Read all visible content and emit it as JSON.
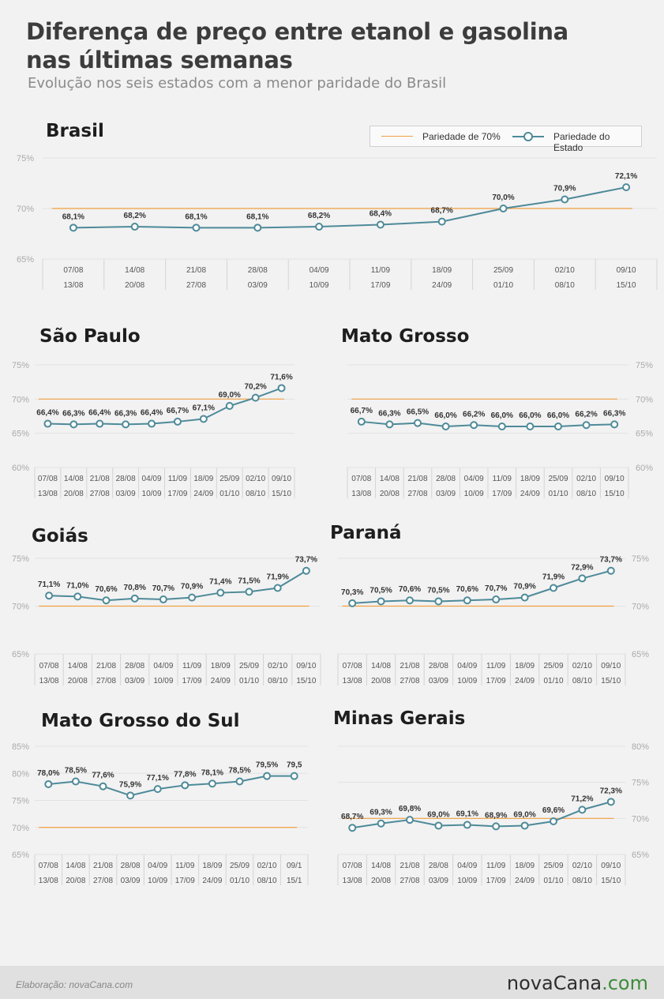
{
  "title": "Diferença de preço entre etanol e gasolina nas últimas semanas",
  "subtitle": "Evolução nos seis estados com a menor paridade do Brasil",
  "legend": {
    "reference": "Pariedade de 70%",
    "state": "Pariedade do Estado"
  },
  "footer": {
    "credit": "Elaboração: novaCana.com",
    "logo_main": "novaCana",
    "logo_suffix": ".com"
  },
  "colors": {
    "line": "#4e8a99",
    "reference": "#f0a040",
    "logo_accent": "#3c8c3c"
  },
  "chart_data": [
    {
      "type": "line",
      "title": "Brasil",
      "categories": [
        "07/08 13/08",
        "14/08 20/08",
        "21/08 27/08",
        "28/08 03/09",
        "04/09 10/09",
        "11/09 17/09",
        "18/09 24/09",
        "25/09 01/10",
        "02/10 08/10",
        "09/10 15/10"
      ],
      "ticks_top": [
        "07/08",
        "14/08",
        "21/08",
        "28/08",
        "04/09",
        "11/09",
        "18/09",
        "25/09",
        "02/10",
        "09/10"
      ],
      "ticks_bottom": [
        "13/08",
        "20/08",
        "27/08",
        "03/09",
        "10/09",
        "17/09",
        "24/09",
        "01/10",
        "08/10",
        "15/10"
      ],
      "values": [
        68.1,
        68.2,
        68.1,
        68.1,
        68.2,
        68.4,
        68.7,
        70.0,
        70.9,
        72.1
      ],
      "labels": [
        "68,1%",
        "68,2%",
        "68,1%",
        "68,1%",
        "68,2%",
        "68,4%",
        "68,7%",
        "70,0%",
        "70,9%",
        "72,1%"
      ],
      "reference": 70,
      "ylim": [
        65,
        75
      ],
      "yticks": [
        "65%",
        "70%",
        "75%"
      ],
      "yaxis_side": "left",
      "grid": true
    },
    {
      "type": "line",
      "title": "São Paulo",
      "categories": [
        "07/08 13/08",
        "14/08 20/08",
        "21/08 27/08",
        "28/08 03/09",
        "04/09 10/09",
        "11/09 17/09",
        "18/09 24/09",
        "25/09 01/10",
        "02/10 08/10",
        "09/10 15/10"
      ],
      "ticks_top": [
        "07/08",
        "14/08",
        "21/08",
        "28/08",
        "04/09",
        "11/09",
        "18/09",
        "25/09",
        "02/10",
        "09/10"
      ],
      "ticks_bottom": [
        "13/08",
        "20/08",
        "27/08",
        "03/09",
        "10/09",
        "17/09",
        "24/09",
        "01/10",
        "08/10",
        "15/10"
      ],
      "values": [
        66.4,
        66.3,
        66.4,
        66.3,
        66.4,
        66.7,
        67.1,
        69.0,
        70.2,
        71.6
      ],
      "labels": [
        "66,4%",
        "66,3%",
        "66,4%",
        "66,3%",
        "66,4%",
        "66,7%",
        "67,1%",
        "69,0%",
        "70,2%",
        "71,6%"
      ],
      "reference": 70,
      "ylim": [
        60,
        75
      ],
      "yticks": [
        "60%",
        "65%",
        "70%",
        "75%"
      ],
      "yaxis_side": "left",
      "grid": true
    },
    {
      "type": "line",
      "title": "Mato Grosso",
      "categories": [
        "07/08 13/08",
        "14/08 20/08",
        "21/08 27/08",
        "28/08 03/09",
        "04/09 10/09",
        "11/09 17/09",
        "18/09 24/09",
        "25/09 01/10",
        "02/10 08/10",
        "09/10 15/10"
      ],
      "ticks_top": [
        "07/08",
        "14/08",
        "21/08",
        "28/08",
        "04/09",
        "11/09",
        "18/09",
        "25/09",
        "02/10",
        "09/10"
      ],
      "ticks_bottom": [
        "13/08",
        "20/08",
        "27/08",
        "03/09",
        "10/09",
        "17/09",
        "24/09",
        "01/10",
        "08/10",
        "15/10"
      ],
      "values": [
        66.7,
        66.3,
        66.5,
        66.0,
        66.2,
        66.0,
        66.0,
        66.0,
        66.2,
        66.3
      ],
      "labels": [
        "66,7%",
        "66,3%",
        "66,5%",
        "66,0%",
        "66,2%",
        "66,0%",
        "66,0%",
        "66,0%",
        "66,2%",
        "66,3%"
      ],
      "reference": 70,
      "ylim": [
        60,
        75
      ],
      "yticks": [
        "60%",
        "65%",
        "70%",
        "75%"
      ],
      "yaxis_side": "right",
      "grid": true
    },
    {
      "type": "line",
      "title": "Goiás",
      "categories": [
        "07/08 13/08",
        "14/08 20/08",
        "21/08 27/08",
        "28/08 03/09",
        "04/09 10/09",
        "11/09 17/09",
        "18/09 24/09",
        "25/09 01/10",
        "02/10 08/10",
        "09/10 15/10"
      ],
      "ticks_top": [
        "07/08",
        "14/08",
        "21/08",
        "28/08",
        "04/09",
        "11/09",
        "18/09",
        "25/09",
        "02/10",
        "09/10"
      ],
      "ticks_bottom": [
        "13/08",
        "20/08",
        "27/08",
        "03/09",
        "10/09",
        "17/09",
        "24/09",
        "01/10",
        "08/10",
        "15/10"
      ],
      "values": [
        71.1,
        71.0,
        70.6,
        70.8,
        70.7,
        70.9,
        71.4,
        71.5,
        71.9,
        73.7
      ],
      "labels": [
        "71,1%",
        "71,0%",
        "70,6%",
        "70,8%",
        "70,7%",
        "70,9%",
        "71,4%",
        "71,5%",
        "71,9%",
        "73,7%"
      ],
      "reference": 70,
      "ylim": [
        65,
        75
      ],
      "yticks": [
        "65%",
        "70%",
        "75%"
      ],
      "yaxis_side": "left",
      "grid": true
    },
    {
      "type": "line",
      "title": "Paraná",
      "categories": [
        "07/08 13/08",
        "14/08 20/08",
        "21/08 27/08",
        "28/08 03/09",
        "04/09 10/09",
        "11/09 17/09",
        "18/09 24/09",
        "25/09 01/10",
        "02/10 08/10",
        "09/10 15/10"
      ],
      "ticks_top": [
        "07/08",
        "14/08",
        "21/08",
        "28/08",
        "04/09",
        "11/09",
        "18/09",
        "25/09",
        "02/10",
        "09/10"
      ],
      "ticks_bottom": [
        "13/08",
        "20/08",
        "27/08",
        "03/09",
        "10/09",
        "17/09",
        "24/09",
        "01/10",
        "08/10",
        "15/10"
      ],
      "values": [
        70.3,
        70.5,
        70.6,
        70.5,
        70.6,
        70.7,
        70.9,
        71.9,
        72.9,
        73.7
      ],
      "labels": [
        "70,3%",
        "70,5%",
        "70,6%",
        "70,5%",
        "70,6%",
        "70,7%",
        "70,9%",
        "71,9%",
        "72,9%",
        "73,7%"
      ],
      "reference": 70,
      "ylim": [
        65,
        75
      ],
      "yticks": [
        "65%",
        "70%",
        "75%"
      ],
      "yaxis_side": "right",
      "grid": true
    },
    {
      "type": "line",
      "title": "Mato Grosso do Sul",
      "categories": [
        "07/08 13/08",
        "14/08 20/08",
        "21/08 27/08",
        "28/08 03/09",
        "04/09 10/09",
        "11/09 17/09",
        "18/09 24/09",
        "25/09 01/10",
        "02/10 08/10",
        "09/10 15/10"
      ],
      "ticks_top": [
        "07/08",
        "14/08",
        "21/08",
        "28/08",
        "04/09",
        "11/09",
        "18/09",
        "25/09",
        "02/10",
        "09/1"
      ],
      "ticks_bottom": [
        "13/08",
        "20/08",
        "27/08",
        "03/09",
        "10/09",
        "17/09",
        "24/09",
        "01/10",
        "08/10",
        "15/1"
      ],
      "values": [
        78.0,
        78.5,
        77.6,
        75.9,
        77.1,
        77.8,
        78.1,
        78.5,
        79.5,
        79.5
      ],
      "labels": [
        "78,0%",
        "78,5%",
        "77,6%",
        "75,9%",
        "77,1%",
        "77,8%",
        "78,1%",
        "78,5%",
        "79,5%",
        "79,5"
      ],
      "reference": 70,
      "ylim": [
        65,
        85
      ],
      "yticks": [
        "65%",
        "70%",
        "75%",
        "80%",
        "85%"
      ],
      "yaxis_side": "left",
      "grid": true
    },
    {
      "type": "line",
      "title": "Minas Gerais",
      "categories": [
        "07/08 13/08",
        "14/08 20/08",
        "21/08 27/08",
        "28/08 03/09",
        "04/09 10/09",
        "11/09 17/09",
        "18/09 24/09",
        "25/09 01/10",
        "02/10 08/10",
        "09/10 15/10"
      ],
      "ticks_top": [
        "07/08",
        "14/08",
        "21/08",
        "28/08",
        "04/09",
        "11/09",
        "18/09",
        "25/09",
        "02/10",
        "09/10"
      ],
      "ticks_bottom": [
        "13/08",
        "20/08",
        "27/08",
        "03/09",
        "10/09",
        "17/09",
        "24/09",
        "01/10",
        "08/10",
        "15/10"
      ],
      "values": [
        68.7,
        69.3,
        69.8,
        69.0,
        69.1,
        68.9,
        69.0,
        69.6,
        71.2,
        72.3
      ],
      "labels": [
        "68,7%",
        "69,3%",
        "69,8%",
        "69,0%",
        "69,1%",
        "68,9%",
        "69,0%",
        "69,6%",
        "71,2%",
        "72,3%"
      ],
      "reference": 70,
      "ylim": [
        65,
        80
      ],
      "yticks": [
        "65%",
        "70%",
        "75%",
        "80%"
      ],
      "yaxis_side": "right",
      "grid": true
    }
  ]
}
